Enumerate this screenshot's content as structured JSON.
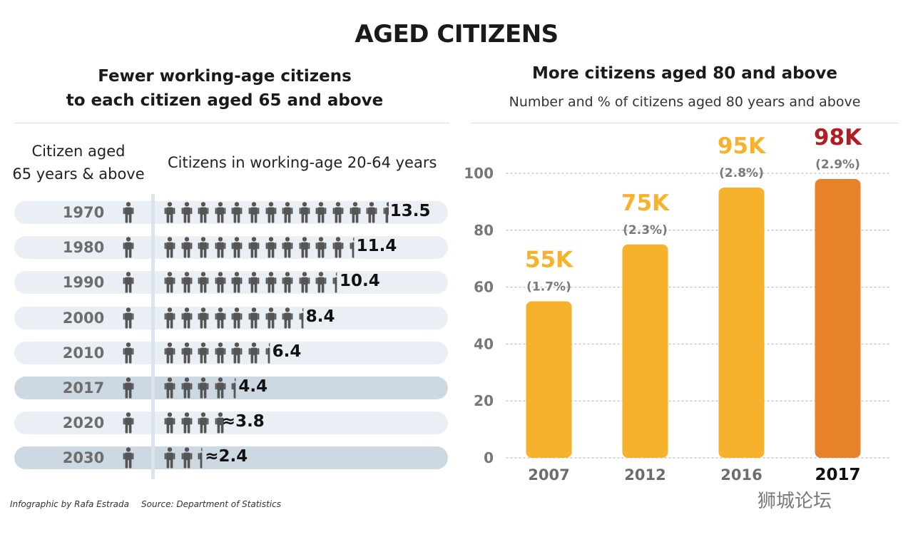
{
  "title": "AGED CITIZENS",
  "left_panel": {
    "title_line1": "Fewer working-age citizens",
    "title_line2": "to each citizen aged 65 and above",
    "col_head_1_line1": "Citizen aged",
    "col_head_1_line2": "65 years & above",
    "col_head_2": "Citizens in working-age 20-64 years",
    "rows": [
      {
        "year": "1970",
        "ratio": 13.5,
        "label": "13.5",
        "highlight": false
      },
      {
        "year": "1980",
        "ratio": 11.4,
        "label": "11.4",
        "highlight": false
      },
      {
        "year": "1990",
        "ratio": 10.4,
        "label": "10.4",
        "highlight": false
      },
      {
        "year": "2000",
        "ratio": 8.4,
        "label": "8.4",
        "highlight": false
      },
      {
        "year": "2010",
        "ratio": 6.4,
        "label": "6.4",
        "highlight": false
      },
      {
        "year": "2017",
        "ratio": 4.4,
        "label": "4.4",
        "highlight": true
      },
      {
        "year": "2020",
        "ratio": 3.8,
        "label": "≈3.8",
        "highlight": false
      },
      {
        "year": "2030",
        "ratio": 2.4,
        "label": "≈2.4",
        "highlight": true
      }
    ]
  },
  "chart_data": {
    "type": "bar",
    "title": "More citizens aged 80 and above",
    "subtitle": "Number and % of citizens aged 80 years and above",
    "xlabel": "",
    "ylabel": "",
    "categories": [
      "2007",
      "2012",
      "2016",
      "2017"
    ],
    "values": [
      55,
      75,
      95,
      98
    ],
    "value_labels": [
      "55K",
      "75K",
      "95K",
      "98K"
    ],
    "pct_labels": [
      "(1.7%)",
      "(2.3%)",
      "(2.8%)",
      "(2.9%)"
    ],
    "ylim": [
      0,
      100
    ],
    "yticks": [
      0,
      20,
      40,
      60,
      80,
      100
    ],
    "grid": true,
    "colors": {
      "bar": "#f6b22d",
      "bar_highlight": "#e8822a",
      "label": "#f6b22d",
      "label_highlight": "#b01e23",
      "pct": "#7a7a7a",
      "grid": "#c9c9c9",
      "tick": "#777777"
    },
    "highlight_index": 3
  },
  "colors": {
    "row_light": "#e9eff4",
    "row_highlight": "#ccd8e2",
    "figure": "#555555"
  },
  "footer": {
    "credit": "Infographic by Rafa Estrada",
    "source": "Source: Department of Statistics"
  },
  "watermark": "狮城论坛"
}
